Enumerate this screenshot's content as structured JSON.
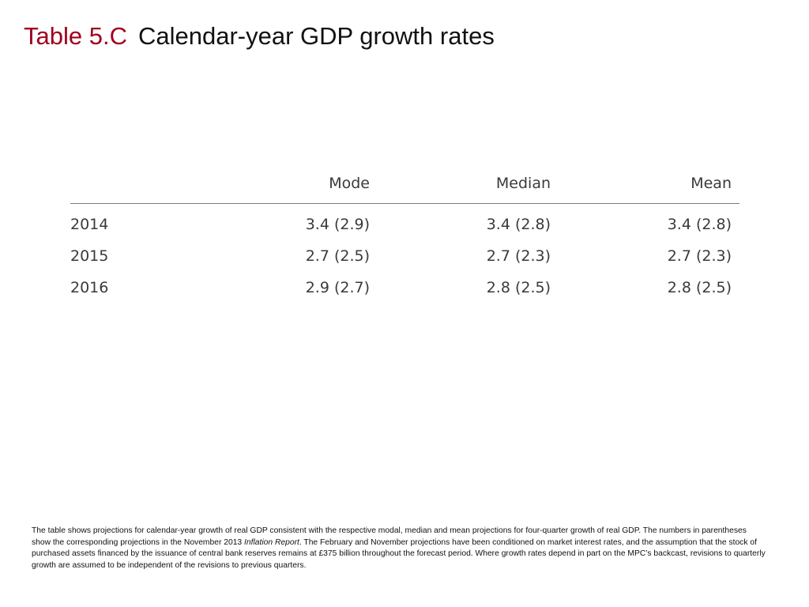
{
  "title": {
    "label": "Table 5.C",
    "text": "Calendar-year GDP growth rates"
  },
  "table": {
    "headers": [
      "",
      "Mode",
      "Median",
      "Mean"
    ],
    "rows": [
      {
        "year": "2014",
        "mode": "3.4 (2.9)",
        "median": "3.4 (2.8)",
        "mean": "3.4 (2.8)"
      },
      {
        "year": "2015",
        "mode": "2.7 (2.5)",
        "median": "2.7 (2.3)",
        "mean": "2.7 (2.3)"
      },
      {
        "year": "2016",
        "mode": "2.9 (2.7)",
        "median": "2.8 (2.5)",
        "mean": "2.8 (2.5)"
      }
    ]
  },
  "footnote": {
    "part1": "The table shows projections for calendar-year growth of real GDP consistent with the respective modal, median and mean projections for four-quarter growth of real GDP.  The numbers in parentheses show the corresponding projections in the November 2013 ",
    "italic": "Inflation Report",
    "part2": ".  The February and November projections have been conditioned on market interest rates, and the assumption that the stock of purchased assets financed by the issuance of central bank reserves remains at £375 billion throughout the forecast period.  Where growth rates depend in part on the MPC’s backcast, revisions to quarterly growth are assumed to be independent of the revisions to previous quarters."
  },
  "colors": {
    "title_label": "#a0001e",
    "table_text": "#3a3a3a",
    "rule": "#7a7a7a"
  }
}
